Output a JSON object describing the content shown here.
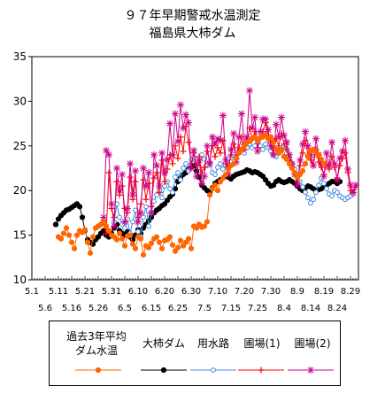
{
  "title_line1": "９７年早期警戒水温測定",
  "title_line2": "福島県大柿ダム",
  "legend": {
    "avg_line1": "過去3年平均",
    "avg_line2": "ダム水温",
    "dam": "大柿ダム",
    "canal": "用水路",
    "field1": "圃場(1)",
    "field2": "圃場(2)"
  },
  "chart_data": {
    "type": "line",
    "title": "９７年早期警戒水温測定 福島県大柿ダム",
    "ylim": [
      10,
      35
    ],
    "yticks": [
      10,
      15,
      20,
      25,
      30,
      35
    ],
    "grid": "horizontal dashed at 15, 20, 25, 30",
    "x_ticks_top": [
      "5.1",
      "5.11",
      "5.21",
      "5.31",
      "6.10",
      "6.20",
      "6.30",
      "7.10",
      "7.20",
      "7.30",
      "8.9",
      "8.19",
      "8.29"
    ],
    "x_ticks_bottom": [
      "5.6",
      "5.16",
      "5.26",
      "6.5",
      "6.15",
      "6.25",
      "7.5",
      "7.15",
      "7.25",
      "8.4",
      "8.14",
      "8.24"
    ],
    "x_range": [
      "5.1",
      "9.1"
    ],
    "legend_position": "bottom",
    "series": [
      {
        "name": "過去3年平均ダム水温",
        "color": "#ff6600",
        "marker": "circle-filled",
        "x": [
          "5.11",
          "5.12",
          "5.13",
          "5.14",
          "5.15",
          "5.16",
          "5.17",
          "5.18",
          "5.19",
          "5.20",
          "5.21",
          "5.22",
          "5.23",
          "5.24",
          "5.25",
          "5.26",
          "5.27",
          "5.28",
          "5.29",
          "5.30",
          "5.31",
          "6.1",
          "6.2",
          "6.3",
          "6.4",
          "6.5",
          "6.6",
          "6.7",
          "6.8",
          "6.9",
          "6.10",
          "6.11",
          "6.12",
          "6.13",
          "6.14",
          "6.15",
          "6.16",
          "6.17",
          "6.18",
          "6.19",
          "6.20",
          "6.21",
          "6.22",
          "6.23",
          "6.24",
          "6.25",
          "6.26",
          "6.27",
          "6.28",
          "6.29",
          "6.30",
          "7.1",
          "7.2",
          "7.3",
          "7.4",
          "7.5",
          "7.6",
          "7.7",
          "7.8",
          "7.9",
          "7.10",
          "7.11",
          "7.12",
          "7.13",
          "7.14",
          "7.15",
          "7.16",
          "7.17",
          "7.18",
          "7.19",
          "7.20",
          "7.21",
          "7.22",
          "7.23",
          "7.24",
          "7.25",
          "7.26",
          "7.27",
          "7.28",
          "7.29",
          "7.30",
          "7.31",
          "8.1",
          "8.2",
          "8.3",
          "8.4",
          "8.5",
          "8.6",
          "8.7",
          "8.8",
          "8.9",
          "8.10",
          "8.11",
          "8.12",
          "8.13",
          "8.14",
          "8.15",
          "8.16",
          "8.17",
          "8.18",
          "8.19"
        ],
        "values": [
          14.8,
          14.6,
          15.2,
          15.8,
          15.0,
          14.2,
          13.5,
          15.0,
          15.5,
          15.3,
          15.6,
          14.2,
          13.0,
          14.8,
          15.8,
          16.0,
          16.2,
          16.5,
          16.0,
          15.5,
          15.0,
          14.8,
          14.5,
          15.2,
          14.6,
          13.8,
          14.9,
          15.0,
          14.0,
          13.5,
          14.8,
          14.6,
          12.8,
          13.8,
          13.6,
          14.1,
          14.6,
          14.8,
          14.2,
          13.5,
          14.4,
          14.5,
          14.8,
          13.9,
          13.2,
          13.6,
          14.4,
          13.8,
          14.2,
          14.6,
          13.5,
          16.0,
          15.8,
          16.2,
          15.9,
          16.0,
          16.5,
          19.5,
          20.2,
          20.6,
          20.0,
          21.0,
          21.4,
          21.8,
          22.4,
          22.8,
          23.0,
          23.6,
          24.2,
          24.6,
          25.0,
          25.4,
          25.5,
          25.8,
          26.0,
          25.6,
          25.9,
          26.0,
          26.2,
          25.8,
          26.0,
          25.4,
          24.6,
          24.2,
          24.5,
          23.8,
          23.5,
          23.0,
          22.5,
          22.0,
          21.5,
          21.8,
          22.2,
          23.0,
          23.8,
          24.4,
          24.6,
          24.3,
          24.0,
          23.5,
          23.0
        ]
      },
      {
        "name": "大柿ダム",
        "color": "#000000",
        "marker": "circle-filled",
        "x": [
          "5.10",
          "5.11",
          "5.12",
          "5.13",
          "5.14",
          "5.15",
          "5.16",
          "5.17",
          "5.18",
          "5.19",
          "5.20",
          "5.21",
          "5.22",
          "5.23",
          "5.24",
          "5.25",
          "5.26",
          "5.27",
          "5.28",
          "5.29",
          "5.30",
          "5.31",
          "6.1",
          "6.2",
          "6.3",
          "6.4",
          "6.5",
          "6.6",
          "6.7",
          "6.8",
          "6.9",
          "6.10",
          "6.11",
          "6.12",
          "6.13",
          "6.14",
          "6.15",
          "6.16",
          "6.17",
          "6.18",
          "6.19",
          "6.20",
          "6.21",
          "6.22",
          "6.23",
          "6.24",
          "6.25",
          "6.26",
          "6.27",
          "6.28",
          "6.29",
          "6.30",
          "7.1",
          "7.2",
          "7.3",
          "7.4",
          "7.5",
          "7.6",
          "7.7",
          "7.8",
          "7.9",
          "7.10",
          "7.11",
          "7.12",
          "7.13",
          "7.14",
          "7.15",
          "7.16",
          "7.17",
          "7.18",
          "7.19",
          "7.20",
          "7.21",
          "7.22",
          "7.23",
          "7.24",
          "7.25",
          "7.26",
          "7.27",
          "7.28",
          "7.29",
          "7.30",
          "7.31",
          "8.1",
          "8.2",
          "8.3",
          "8.4",
          "8.5",
          "8.6",
          "8.7",
          "8.8",
          "8.9",
          "8.10",
          "8.11",
          "8.12",
          "8.13",
          "8.14",
          "8.15",
          "8.16",
          "8.17",
          "8.18",
          "8.19",
          "8.20",
          "8.21",
          "8.22",
          "8.23",
          "8.24",
          "8.25"
        ],
        "values": [
          16.2,
          16.8,
          17.2,
          17.5,
          17.8,
          17.9,
          18.1,
          18.3,
          18.5,
          18.2,
          17.0,
          15.5,
          14.5,
          14.2,
          14.0,
          14.5,
          14.8,
          15.2,
          15.5,
          15.0,
          14.8,
          15.2,
          15.8,
          16.2,
          15.5,
          15.2,
          15.0,
          15.4,
          14.8,
          14.5,
          15.0,
          15.6,
          15.2,
          15.8,
          16.2,
          16.6,
          17.0,
          17.5,
          17.8,
          18.0,
          18.3,
          18.5,
          18.9,
          19.3,
          19.6,
          20.2,
          21.0,
          21.4,
          21.8,
          22.0,
          22.4,
          22.6,
          22.8,
          22.2,
          21.5,
          20.6,
          20.3,
          20.0,
          19.8,
          20.3,
          20.8,
          21.0,
          21.2,
          21.4,
          21.6,
          21.5,
          21.3,
          21.6,
          21.8,
          21.9,
          22.0,
          22.1,
          22.3,
          22.2,
          22.0,
          22.1,
          22.0,
          21.8,
          21.6,
          21.2,
          20.8,
          20.5,
          20.6,
          21.0,
          21.2,
          21.0,
          20.9,
          21.0,
          21.2,
          21.0,
          20.8,
          20.5,
          20.2,
          20.0,
          20.3,
          20.5,
          20.4,
          20.2,
          20.0,
          20.1,
          20.2,
          20.4,
          20.6,
          20.8,
          21.0,
          21.0,
          20.8,
          21.0
        ]
      },
      {
        "name": "用水路",
        "color": "#4488dd",
        "marker": "circle-open",
        "x": [
          "6.1",
          "6.2",
          "6.3",
          "6.4",
          "6.5",
          "6.6",
          "6.7",
          "6.8",
          "6.9",
          "6.10",
          "6.11",
          "6.12",
          "6.13",
          "6.14",
          "6.15",
          "6.16",
          "6.17",
          "6.18",
          "6.19",
          "6.20",
          "6.21",
          "6.22",
          "6.23",
          "6.24",
          "6.25",
          "6.26",
          "6.27",
          "6.28",
          "6.29",
          "6.30",
          "7.1",
          "7.2",
          "7.3",
          "7.4",
          "7.5",
          "7.6",
          "7.7",
          "7.8",
          "7.9",
          "7.10",
          "7.11",
          "7.12",
          "7.13",
          "7.14",
          "7.15",
          "7.16",
          "7.17",
          "7.18",
          "7.19",
          "7.20",
          "7.21",
          "7.22",
          "7.23",
          "7.24",
          "7.25",
          "7.26",
          "7.27",
          "7.28",
          "7.29",
          "7.30",
          "7.31",
          "8.1",
          "8.2",
          "8.3",
          "8.4",
          "8.5",
          "8.6",
          "8.7",
          "8.8",
          "8.9",
          "8.10",
          "8.11",
          "8.12",
          "8.13",
          "8.14",
          "8.15",
          "8.16",
          "8.17",
          "8.18",
          "8.19",
          "8.20",
          "8.21",
          "8.22",
          "8.23",
          "8.24",
          "8.25",
          "8.26",
          "8.27",
          "8.28",
          "8.29",
          "8.30"
        ],
        "values": [
          16.5,
          18.5,
          17.0,
          16.2,
          15.8,
          16.8,
          15.2,
          16.5,
          17.8,
          15.4,
          14.8,
          17.0,
          18.2,
          16.0,
          17.5,
          18.8,
          19.5,
          20.0,
          19.2,
          20.5,
          21.0,
          20.2,
          19.8,
          21.5,
          22.0,
          21.2,
          22.5,
          23.0,
          22.2,
          23.4,
          23.8,
          23.2,
          22.6,
          24.0,
          23.5,
          22.8,
          23.2,
          22.0,
          21.8,
          22.6,
          23.0,
          22.4,
          22.8,
          23.6,
          23.2,
          24.0,
          23.8,
          24.4,
          24.6,
          24.2,
          24.8,
          25.2,
          24.8,
          25.0,
          25.4,
          25.0,
          24.6,
          25.2,
          24.8,
          24.4,
          24.0,
          23.8,
          24.2,
          24.6,
          25.0,
          24.2,
          23.6,
          23.0,
          22.4,
          21.8,
          21.0,
          20.4,
          19.8,
          19.2,
          18.6,
          19.0,
          19.8,
          20.6,
          21.4,
          20.8,
          20.2,
          19.6,
          19.4,
          20.0,
          19.8,
          19.4,
          19.2,
          19.0,
          19.2,
          19.4,
          19.6
        ]
      },
      {
        "name": "圃場(1)",
        "color": "#ff0000",
        "marker": "plus",
        "x": [
          "5.28",
          "5.29",
          "5.30",
          "5.31",
          "6.1",
          "6.2",
          "6.3",
          "6.4",
          "6.5",
          "6.6",
          "6.7",
          "6.8",
          "6.9",
          "6.10",
          "6.11",
          "6.12",
          "6.13",
          "6.14",
          "6.15",
          "6.16",
          "6.17",
          "6.18",
          "6.19",
          "6.20",
          "6.21",
          "6.22",
          "6.23",
          "6.24",
          "6.25",
          "6.26",
          "6.27",
          "6.28",
          "6.29",
          "6.30",
          "7.1",
          "7.2",
          "7.3",
          "7.4",
          "7.5",
          "7.6",
          "7.7",
          "7.8",
          "7.9",
          "7.10",
          "7.11",
          "7.12",
          "7.13",
          "7.14",
          "7.15",
          "7.16",
          "7.17",
          "7.18",
          "7.19",
          "7.20",
          "7.21",
          "7.22",
          "7.23",
          "7.24",
          "7.25",
          "7.26",
          "7.27",
          "7.28",
          "7.29",
          "7.30",
          "7.31",
          "8.1",
          "8.2",
          "8.3",
          "8.4",
          "8.5",
          "8.6",
          "8.7",
          "8.8",
          "8.9",
          "8.10",
          "8.11",
          "8.12",
          "8.13",
          "8.14",
          "8.15",
          "8.16",
          "8.17",
          "8.18",
          "8.19",
          "8.20",
          "8.21",
          "8.22",
          "8.23",
          "8.24",
          "8.25",
          "8.26",
          "8.27",
          "8.28",
          "8.29",
          "8.30",
          "8.31"
        ],
        "values": [
          16.5,
          15.2,
          22.0,
          18.0,
          17.0,
          21.0,
          19.5,
          20.5,
          18.0,
          17.5,
          21.5,
          19.0,
          21.0,
          17.0,
          18.5,
          21.2,
          19.0,
          20.8,
          18.2,
          21.4,
          22.0,
          19.8,
          23.4,
          21.0,
          22.4,
          24.0,
          23.0,
          25.0,
          23.6,
          26.0,
          24.4,
          27.2,
          25.4,
          23.0,
          24.2,
          22.8,
          23.8,
          22.0,
          22.6,
          24.4,
          23.2,
          25.0,
          23.8,
          24.8,
          24.2,
          25.6,
          23.0,
          22.6,
          24.0,
          25.2,
          23.6,
          24.8,
          26.0,
          24.6,
          25.4,
          27.0,
          25.8,
          26.6,
          24.8,
          25.8,
          26.6,
          27.6,
          26.0,
          25.4,
          24.6,
          25.8,
          25.0,
          26.4,
          25.2,
          24.6,
          23.4,
          22.6,
          21.8,
          21.0,
          22.8,
          24.2,
          25.6,
          24.0,
          23.4,
          22.8,
          24.6,
          23.2,
          22.6,
          21.8,
          23.0,
          22.4,
          23.8,
          22.6,
          21.4,
          22.8,
          23.6,
          24.2,
          22.0,
          20.0,
          19.8,
          20.4
        ]
      },
      {
        "name": "圃場(2)",
        "color": "#cc0088",
        "marker": "asterisk",
        "x": [
          "5.28",
          "5.29",
          "5.30",
          "5.31",
          "6.1",
          "6.2",
          "6.3",
          "6.4",
          "6.5",
          "6.6",
          "6.7",
          "6.8",
          "6.9",
          "6.10",
          "6.11",
          "6.12",
          "6.13",
          "6.14",
          "6.15",
          "6.16",
          "6.17",
          "6.18",
          "6.19",
          "6.20",
          "6.21",
          "6.22",
          "6.23",
          "6.24",
          "6.25",
          "6.26",
          "6.27",
          "6.28",
          "6.29",
          "6.30",
          "7.1",
          "7.2",
          "7.3",
          "7.4",
          "7.5",
          "7.6",
          "7.7",
          "7.8",
          "7.9",
          "7.10",
          "7.11",
          "7.12",
          "7.13",
          "7.14",
          "7.15",
          "7.16",
          "7.17",
          "7.18",
          "7.19",
          "7.20",
          "7.21",
          "7.22",
          "7.23",
          "7.24",
          "7.25",
          "7.26",
          "7.27",
          "7.28",
          "7.29",
          "7.30",
          "7.31",
          "8.1",
          "8.2",
          "8.3",
          "8.4",
          "8.5",
          "8.6",
          "8.7",
          "8.8",
          "8.9",
          "8.10",
          "8.11",
          "8.12",
          "8.13",
          "8.14",
          "8.15",
          "8.16",
          "8.17",
          "8.18",
          "8.19",
          "8.20",
          "8.21",
          "8.22",
          "8.23",
          "8.24",
          "8.25",
          "8.26",
          "8.27",
          "8.28",
          "8.29",
          "8.30",
          "8.31"
        ],
        "values": [
          17.0,
          24.5,
          24.0,
          18.5,
          16.0,
          22.5,
          20.0,
          21.8,
          16.5,
          18.0,
          23.0,
          19.5,
          22.2,
          16.5,
          17.5,
          22.5,
          20.5,
          22.0,
          17.5,
          24.0,
          22.8,
          20.5,
          24.2,
          22.0,
          23.5,
          27.5,
          24.0,
          28.6,
          25.5,
          29.6,
          27.0,
          28.5,
          27.6,
          22.5,
          24.5,
          21.6,
          23.4,
          20.8,
          21.6,
          25.0,
          23.0,
          26.0,
          25.2,
          25.8,
          25.6,
          28.4,
          23.4,
          21.8,
          24.6,
          26.4,
          23.2,
          26.0,
          28.6,
          25.2,
          26.0,
          31.2,
          27.0,
          28.2,
          24.4,
          26.6,
          28.0,
          28.0,
          26.8,
          25.0,
          24.0,
          27.4,
          26.0,
          28.2,
          26.2,
          25.4,
          24.0,
          23.0,
          21.8,
          20.6,
          23.4,
          25.2,
          26.6,
          25.0,
          24.0,
          22.8,
          25.8,
          24.0,
          23.0,
          21.6,
          24.2,
          22.8,
          25.4,
          23.0,
          21.2,
          23.6,
          24.4,
          25.6,
          22.4,
          20.6,
          19.8,
          20.6
        ]
      }
    ]
  }
}
